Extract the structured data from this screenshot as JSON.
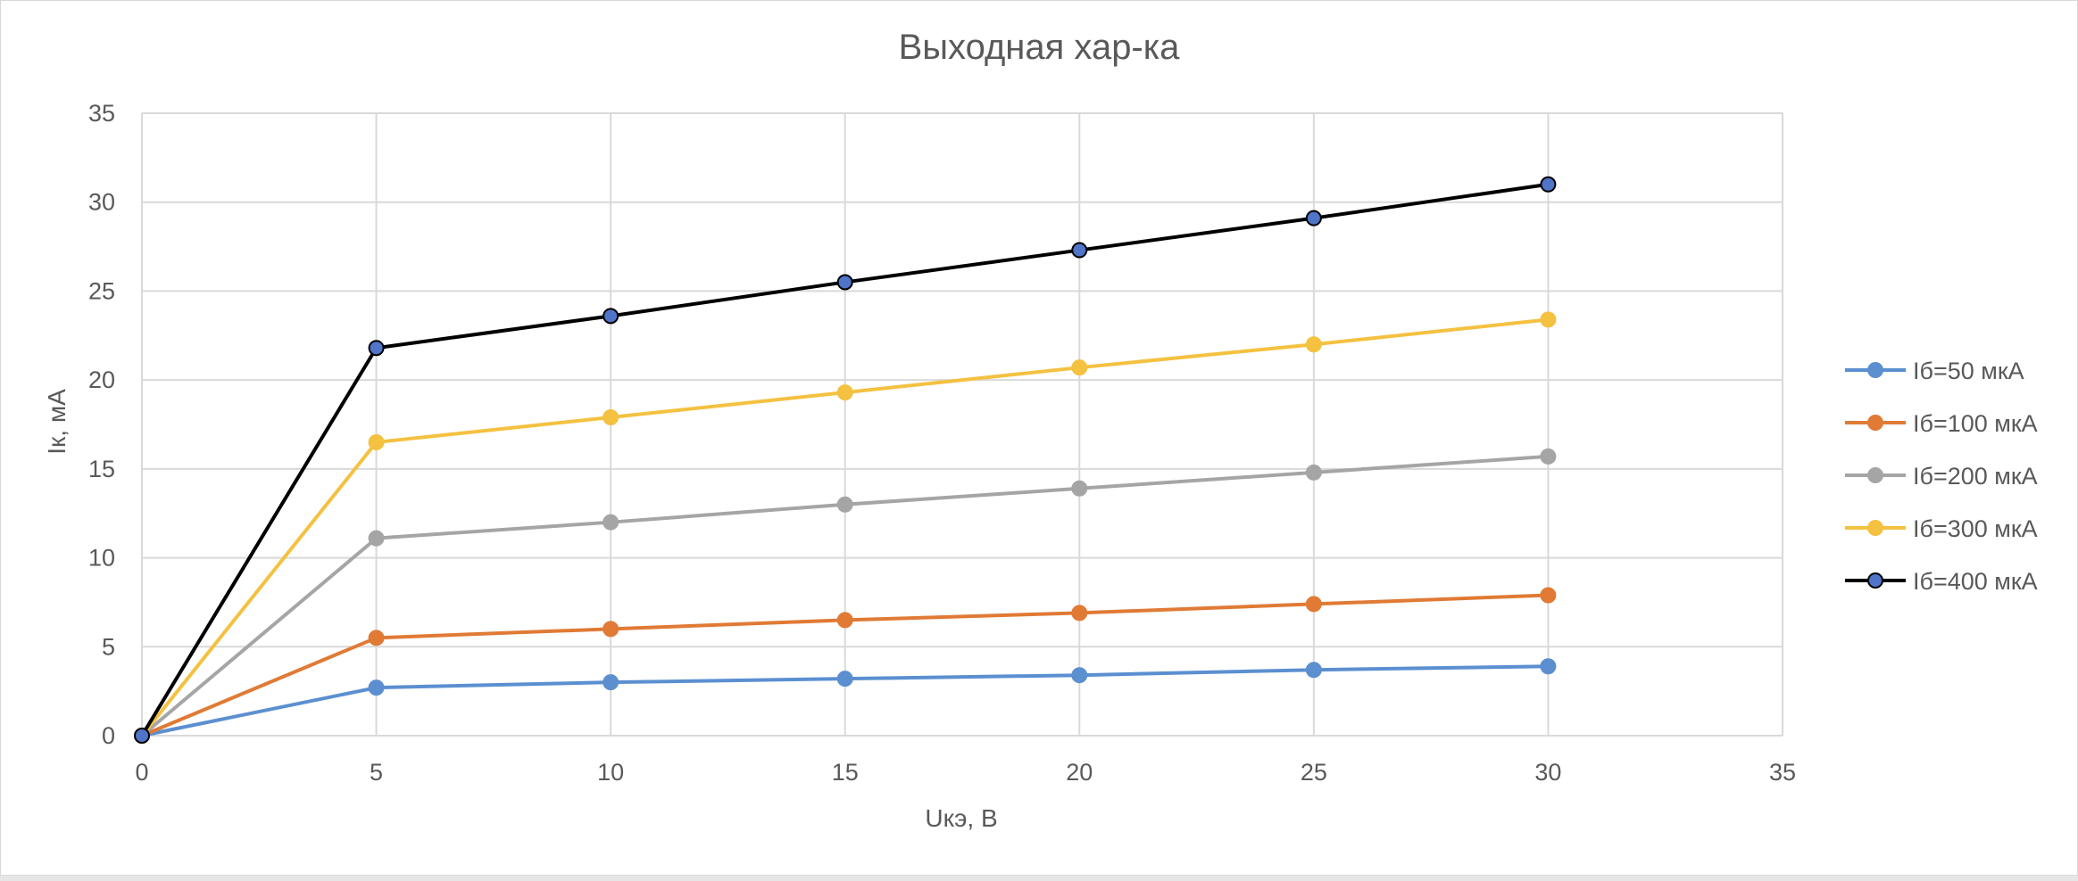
{
  "chart_data": {
    "type": "line",
    "title": "Выходная хар-ка",
    "xlabel": "Uкэ, В",
    "ylabel": "Iк, мА",
    "xlim": [
      0,
      35
    ],
    "ylim": [
      0,
      35
    ],
    "xticks": [
      0,
      5,
      10,
      15,
      20,
      25,
      30,
      35
    ],
    "yticks": [
      0,
      5,
      10,
      15,
      20,
      25,
      30,
      35
    ],
    "x": [
      0,
      5,
      10,
      15,
      20,
      25,
      30
    ],
    "grid": true,
    "legend_position": "right",
    "series": [
      {
        "name": "Iб=50 мкА",
        "color": "#5b8fd0",
        "marker_edge": "#5b8fd0",
        "values": [
          0,
          2.7,
          3.0,
          3.2,
          3.4,
          3.7,
          3.9
        ]
      },
      {
        "name": "Iб=100 мкА",
        "color": "#e07a35",
        "marker_edge": "#e07a35",
        "values": [
          0,
          5.5,
          6.0,
          6.5,
          6.9,
          7.4,
          7.9
        ]
      },
      {
        "name": "Iб=200 мкА",
        "color": "#a5a5a5",
        "marker_edge": "#a5a5a5",
        "values": [
          0,
          11.1,
          12.0,
          13.0,
          13.9,
          14.8,
          15.7
        ]
      },
      {
        "name": "Iб=300 мкА",
        "color": "#f4c140",
        "marker_edge": "#f4c140",
        "values": [
          0,
          16.5,
          17.9,
          19.3,
          20.7,
          22.0,
          23.4
        ]
      },
      {
        "name": "Iб=400 мкА",
        "color": "#000000",
        "marker_fill": "#4f74c8",
        "marker_edge": "#000000",
        "values": [
          0,
          21.8,
          23.6,
          25.5,
          27.3,
          29.1,
          31.0
        ]
      }
    ]
  }
}
